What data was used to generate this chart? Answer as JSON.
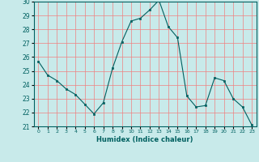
{
  "x": [
    0,
    1,
    2,
    3,
    4,
    5,
    6,
    7,
    8,
    9,
    10,
    11,
    12,
    13,
    14,
    15,
    16,
    17,
    18,
    19,
    20,
    21,
    22,
    23
  ],
  "y": [
    25.7,
    24.7,
    24.3,
    23.7,
    23.3,
    22.6,
    21.9,
    22.7,
    25.2,
    27.1,
    28.6,
    28.8,
    29.4,
    30.1,
    28.2,
    27.4,
    23.2,
    22.4,
    22.5,
    24.5,
    24.3,
    23.0,
    22.4,
    21.1
  ],
  "line_color": "#006060",
  "marker_color": "#006060",
  "bg_color": "#c8eaea",
  "grid_color": "#f08080",
  "xlabel": "Humidex (Indice chaleur)",
  "ylim": [
    21,
    30
  ],
  "xlim_min": -0.5,
  "xlim_max": 23.5,
  "yticks": [
    21,
    22,
    23,
    24,
    25,
    26,
    27,
    28,
    29,
    30
  ],
  "xticks": [
    0,
    1,
    2,
    3,
    4,
    5,
    6,
    7,
    8,
    9,
    10,
    11,
    12,
    13,
    14,
    15,
    16,
    17,
    18,
    19,
    20,
    21,
    22,
    23
  ]
}
